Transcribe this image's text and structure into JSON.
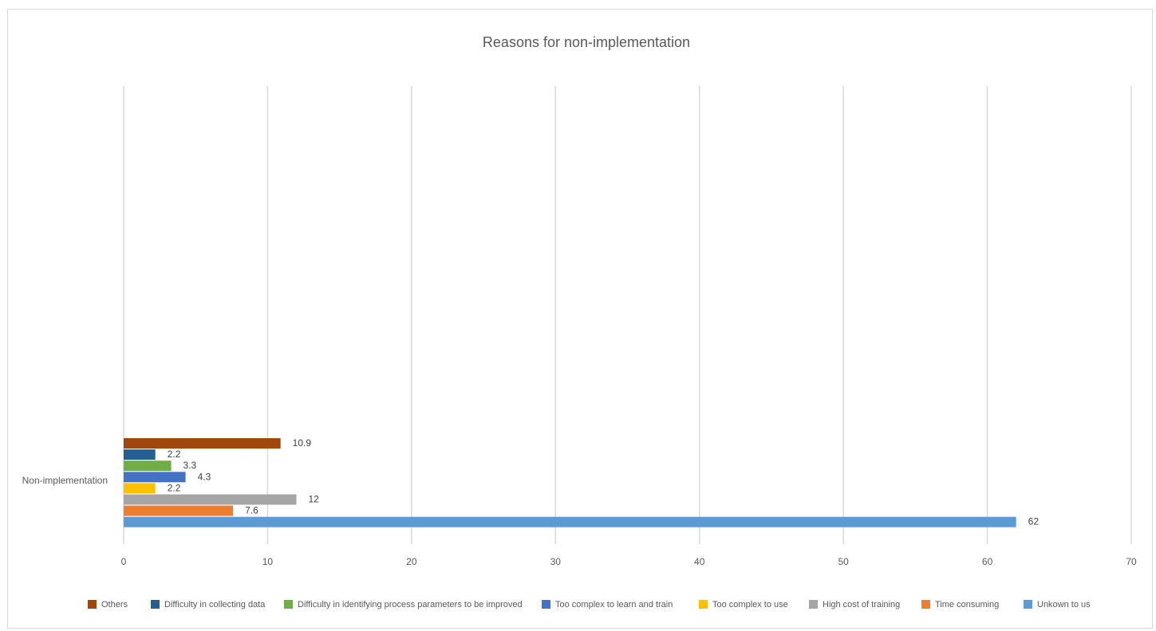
{
  "chart_data": {
    "type": "bar",
    "orientation": "horizontal",
    "title": "Reasons for non-implementation",
    "categories": [
      "Non-implementation"
    ],
    "series": [
      {
        "name": "Others",
        "values": [
          10.9
        ],
        "color": "#9e480e"
      },
      {
        "name": "Difficulty in collecting data",
        "values": [
          2.2
        ],
        "color": "#255e91"
      },
      {
        "name": "Difficulty in identifying process parameters to be improved",
        "values": [
          3.3
        ],
        "color": "#70ad47"
      },
      {
        "name": "Too complex to learn and train",
        "values": [
          4.3
        ],
        "color": "#4472c4"
      },
      {
        "name": "Too complex to use",
        "values": [
          2.2
        ],
        "color": "#ffc000"
      },
      {
        "name": "High cost of training",
        "values": [
          12
        ],
        "color": "#a5a5a5"
      },
      {
        "name": "Time consuming",
        "values": [
          7.6
        ],
        "color": "#ed7d31"
      },
      {
        "name": "Unkown to us",
        "values": [
          62
        ],
        "color": "#5b9bd5"
      }
    ],
    "data_labels": [
      "10.9",
      "2.2",
      "3.3",
      "4.3",
      "2.2",
      "12",
      "7.6",
      "62"
    ],
    "xlim": [
      0,
      70
    ],
    "x_ticks": [
      "0",
      "10",
      "20",
      "30",
      "40",
      "50",
      "60",
      "70"
    ],
    "grid": "vertical",
    "legend_position": "bottom"
  }
}
